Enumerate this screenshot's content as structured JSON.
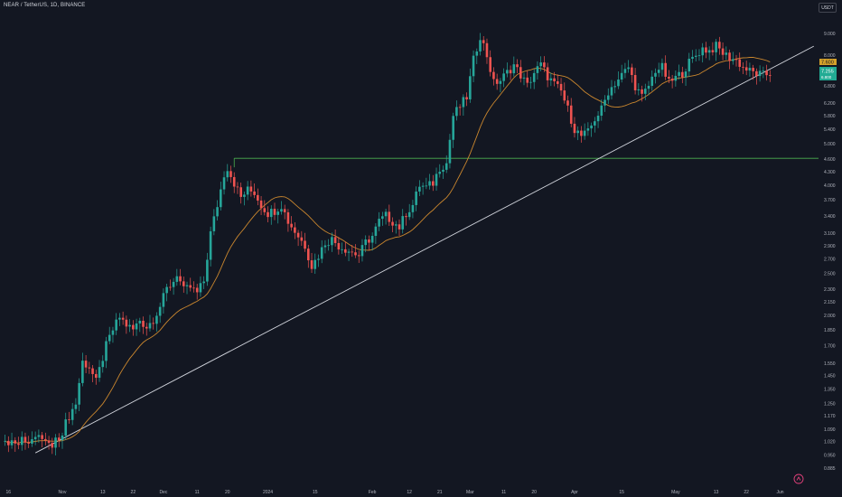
{
  "header": {
    "title": "NEAR / TetherUS, 1D, BINANCE",
    "currency": "USDT"
  },
  "price_tags": {
    "yellow": "7.600",
    "green": "7.255",
    "green_sub": "6.800"
  },
  "colors": {
    "background": "#131722",
    "up": "#26a69a",
    "down": "#ef5350",
    "ma": "#c9862e",
    "horizontal_line": "#4caf50",
    "trendline": "#d1d4dc",
    "tag_yellow": "#d4a12a",
    "tag_green": "#22ab94"
  },
  "chart_data": {
    "type": "candlestick",
    "symbol": "NEAR / TetherUS",
    "interval": "1D",
    "exchange": "BINANCE",
    "y_scale": "log",
    "ylim": [
      0.86,
      9.3
    ],
    "y_ticks": [
      "9.000",
      "8.000",
      "7.250",
      "6.800",
      "6.200",
      "5.800",
      "5.400",
      "5.000",
      "4.600",
      "4.300",
      "4.000",
      "3.700",
      "3.400",
      "3.100",
      "2.900",
      "2.700",
      "2.500",
      "2.300",
      "2.150",
      "2.000",
      "1.850",
      "1.700",
      "1.550",
      "1.450",
      "1.350",
      "1.250",
      "1.170",
      "1.090",
      "1.020",
      "0.950",
      "0.885"
    ],
    "x_ticks": [
      "16",
      "Nov",
      "13",
      "22",
      "Dec",
      "11",
      "20",
      "2024",
      "15",
      "Feb",
      "12",
      "21",
      "Mar",
      "11",
      "20",
      "Apr",
      "15",
      "May",
      "13",
      "22",
      "Jun"
    ],
    "x_tick_days": [
      -16,
      0,
      12,
      21,
      30,
      40,
      49,
      61,
      75,
      92,
      103,
      112,
      121,
      131,
      140,
      152,
      166,
      182,
      194,
      203,
      213
    ],
    "horizontal_level": 4.62,
    "trendline": {
      "start": {
        "day": -8,
        "price": 0.96
      },
      "end": {
        "day": 223,
        "price": 8.4
      }
    },
    "ma_series": {
      "name": "",
      "description": "moving average"
    },
    "anchors": [
      [
        -17,
        1.02
      ],
      [
        -6,
        1.04
      ],
      [
        -3,
        0.99
      ],
      [
        0,
        1.08
      ],
      [
        2,
        1.17
      ],
      [
        4,
        1.25
      ],
      [
        6,
        1.56
      ],
      [
        8,
        1.52
      ],
      [
        10,
        1.4
      ],
      [
        13,
        1.7
      ],
      [
        15,
        1.85
      ],
      [
        17,
        1.98
      ],
      [
        19,
        1.9
      ],
      [
        21,
        1.85
      ],
      [
        23,
        1.95
      ],
      [
        25,
        1.88
      ],
      [
        27,
        1.96
      ],
      [
        29,
        2.1
      ],
      [
        31,
        2.3
      ],
      [
        33,
        2.4
      ],
      [
        34,
        2.5
      ],
      [
        36,
        2.28
      ],
      [
        38,
        2.32
      ],
      [
        40,
        2.25
      ],
      [
        42,
        2.4
      ],
      [
        44,
        3.1
      ],
      [
        46,
        3.6
      ],
      [
        48,
        4.25
      ],
      [
        49,
        4.4
      ],
      [
        51,
        4.05
      ],
      [
        53,
        3.75
      ],
      [
        55,
        3.9
      ],
      [
        57,
        3.85
      ],
      [
        59,
        3.6
      ],
      [
        61,
        3.45
      ],
      [
        63,
        3.5
      ],
      [
        65,
        3.6
      ],
      [
        67,
        3.3
      ],
      [
        70,
        3.05
      ],
      [
        72,
        2.9
      ],
      [
        74,
        2.6
      ],
      [
        76,
        2.75
      ],
      [
        78,
        2.95
      ],
      [
        80,
        3.0
      ],
      [
        82,
        2.9
      ],
      [
        84,
        2.85
      ],
      [
        86,
        2.8
      ],
      [
        88,
        2.75
      ],
      [
        90,
        2.95
      ],
      [
        92,
        3.05
      ],
      [
        94,
        3.3
      ],
      [
        96,
        3.4
      ],
      [
        98,
        3.3
      ],
      [
        100,
        3.2
      ],
      [
        102,
        3.45
      ],
      [
        104,
        3.6
      ],
      [
        106,
        4.0
      ],
      [
        108,
        3.95
      ],
      [
        110,
        4.05
      ],
      [
        112,
        4.4
      ],
      [
        114,
        4.5
      ],
      [
        116,
        5.8
      ],
      [
        118,
        6.1
      ],
      [
        120,
        6.4
      ],
      [
        122,
        7.8
      ],
      [
        124,
        8.9
      ],
      [
        126,
        8.0
      ],
      [
        128,
        6.9
      ],
      [
        130,
        7.0
      ],
      [
        132,
        7.3
      ],
      [
        134,
        7.6
      ],
      [
        136,
        7.2
      ],
      [
        138,
        6.8
      ],
      [
        140,
        7.3
      ],
      [
        142,
        7.6
      ],
      [
        144,
        7.15
      ],
      [
        146,
        6.85
      ],
      [
        148,
        6.6
      ],
      [
        150,
        6.0
      ],
      [
        152,
        5.4
      ],
      [
        154,
        5.2
      ],
      [
        156,
        5.3
      ],
      [
        158,
        5.7
      ],
      [
        160,
        6.0
      ],
      [
        162,
        6.6
      ],
      [
        164,
        6.9
      ],
      [
        166,
        7.2
      ],
      [
        168,
        7.5
      ],
      [
        170,
        6.8
      ],
      [
        172,
        6.4
      ],
      [
        174,
        6.8
      ],
      [
        176,
        7.4
      ],
      [
        178,
        7.5
      ],
      [
        180,
        6.9
      ],
      [
        182,
        7.1
      ],
      [
        184,
        7.3
      ],
      [
        186,
        7.7
      ],
      [
        188,
        8.0
      ],
      [
        190,
        8.3
      ],
      [
        192,
        8.2
      ],
      [
        194,
        8.4
      ],
      [
        196,
        8.1
      ],
      [
        198,
        7.9
      ],
      [
        200,
        7.8
      ],
      [
        202,
        7.5
      ],
      [
        204,
        7.35
      ],
      [
        206,
        7.25
      ],
      [
        208,
        7.2
      ],
      [
        210,
        7.25
      ]
    ]
  }
}
